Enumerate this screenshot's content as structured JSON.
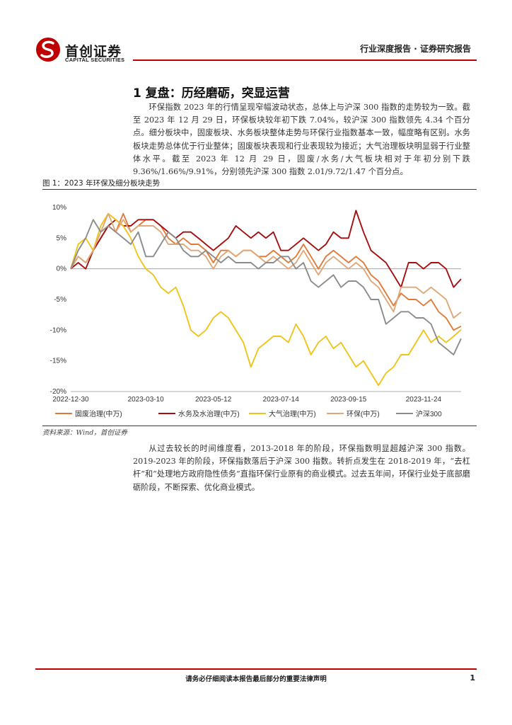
{
  "header": {
    "logo_name": "首创证券",
    "logo_sub": "CAPITAL SECURITIES",
    "report_type": "行业深度报告 · 证券研究报告"
  },
  "section": {
    "title": "1 复盘：历经磨砺，突显运营",
    "paragraph1": "环保指数 2023 年的行情呈现窄幅波动状态，总体上与沪深 300 指数的走势较为一致。截至 2023 年 12 月 29 日，环保板块较年初下跌 7.04%，较沪深 300 指数领先 4.34 个百分点。细分板块中，固废板块、水务板块整体走势与环保行业指数基本一致，幅度略有区别。水务板块走势总体优于行业整体；固废板块表现和行业表现较为接近；大气治理板块明显弱于行业整体水平。截至 2023 年 12 月 29 日，固废/水务/大气板块相对于年初分别下跌 9.36%/1.66%/9.91%，分别领先沪深 300 指数 2.01/9.72/1.47 个百分点。",
    "figure_caption": "图 1：2023 年环保及细分板块走势",
    "source": "资料来源：Wind，首创证券",
    "paragraph2": "从过去较长的时间维度看，2013-2018 年的阶段，环保指数明显超越沪深 300 指数。2019-2023 年的阶段，环保指数落后于沪深 300 指数。转折点发生在 2018-2019 年，“去杠杆”和“处理地方政府隐性债务”直指环保行业原有的商业模式。过去五年间，环保行业处于底部磨砺阶段，不断探索、优化商业模式。"
  },
  "footer": {
    "disclaimer": "请务必仔细阅读本报告最后部分的重要法律声明",
    "page": "1"
  },
  "chart_data": {
    "type": "line",
    "title": "",
    "ylim": [
      -20,
      10
    ],
    "yticks": [
      10,
      5,
      0,
      -5,
      -10,
      -15,
      -20
    ],
    "ytick_labels": [
      "10%",
      "5%",
      "0%",
      "-5%",
      "-10%",
      "-15%",
      "-20%"
    ],
    "xtick_labels": [
      "2022-12-30",
      "2023-03-10",
      "2023-05-12",
      "2023-07-14",
      "2023-09-15",
      "2023-11-24"
    ],
    "xtick_index": [
      0,
      10,
      19,
      28,
      37,
      47
    ],
    "n_points": 53,
    "legend_position": "bottom",
    "series": [
      {
        "name": "固废治理(中万)",
        "color": "#e07b39",
        "values": [
          0,
          2,
          1,
          3,
          5,
          7,
          6,
          9,
          6,
          7,
          8,
          8,
          7,
          5,
          4,
          5,
          4,
          4,
          3,
          1,
          3,
          3,
          2,
          3,
          3,
          2,
          2,
          3,
          2,
          1,
          2,
          4,
          2,
          0,
          2,
          3,
          2,
          1,
          2,
          1,
          -1,
          -2,
          -4,
          -6,
          -4,
          -5,
          -5,
          -6,
          -5,
          -7,
          -8,
          -10,
          -9.36
        ]
      },
      {
        "name": "水务及水治理(中万)",
        "color": "#a50f0f",
        "values": [
          0,
          1,
          0,
          3,
          5,
          7,
          8,
          7,
          7,
          8,
          8,
          8,
          7,
          6,
          5,
          6,
          6,
          5,
          4,
          3,
          4,
          5,
          7,
          6,
          5,
          6,
          5,
          6,
          3,
          3,
          4,
          5,
          4,
          3,
          4,
          6,
          5,
          5,
          9.5,
          6,
          3,
          2,
          1,
          -1,
          -3,
          1,
          1,
          0,
          1,
          1,
          0,
          -3,
          -1.66
        ]
      },
      {
        "name": "大气治理(中万)",
        "color": "#f0c419",
        "values": [
          0,
          4,
          5,
          3,
          7,
          9,
          8,
          7,
          5,
          2,
          0,
          -1,
          -3,
          -4,
          -3,
          -6,
          -10,
          -11,
          -10,
          -8,
          -7,
          -8,
          -10,
          -12,
          -16,
          -13,
          -12,
          -11,
          -11,
          -12,
          -9,
          -11,
          -14,
          -12,
          -11,
          -13,
          -12,
          -14,
          -16,
          -15,
          -17,
          -19,
          -17,
          -16,
          -14,
          -14,
          -12,
          -10,
          -12,
          -11,
          -12,
          -11,
          -9.91
        ]
      },
      {
        "name": "环保(中万)",
        "color": "#e0a878",
        "values": [
          0,
          2,
          1,
          3,
          6,
          9,
          6,
          8,
          6,
          7,
          7,
          7,
          6,
          4,
          4,
          4,
          3,
          3,
          2,
          0,
          2,
          3,
          2,
          3,
          3,
          2,
          1,
          2,
          1,
          0,
          1,
          3,
          1,
          -1,
          1,
          2,
          1,
          0,
          1,
          0,
          -2,
          -3,
          -5,
          -7,
          -3,
          -3,
          -3,
          -4,
          -3,
          -4,
          -5,
          -8,
          -7.04
        ]
      },
      {
        "name": "沪深300",
        "color": "#8c8c8c",
        "values": [
          0,
          3,
          5,
          8,
          6,
          7,
          6,
          5,
          4,
          6,
          2,
          2,
          4,
          6,
          5,
          3,
          2,
          2,
          3,
          2,
          1,
          2,
          1,
          1,
          1,
          0,
          1,
          1,
          2,
          2,
          0,
          1,
          -2,
          -3,
          -2,
          -1,
          -3,
          -2,
          -2,
          -3,
          -5,
          -5,
          -9,
          -8,
          -7,
          -7,
          -8,
          -8,
          -9,
          -12,
          -13,
          -14,
          -11.38
        ]
      }
    ]
  }
}
